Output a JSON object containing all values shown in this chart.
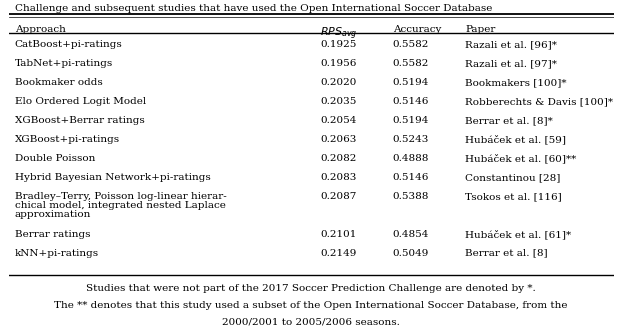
{
  "caption_top": "Challenge and subsequent studies that have used the Open International Soccer Database",
  "headers": [
    "Approach",
    "RPS_avg",
    "Accuracy",
    "Paper"
  ],
  "rows": [
    [
      "CatBoost+pi-ratings",
      "0.1925",
      "0.5582",
      "Razali et al. [96]*"
    ],
    [
      "TabNet+pi-ratings",
      "0.1956",
      "0.5582",
      "Razali et al. [97]*"
    ],
    [
      "Bookmaker odds",
      "0.2020",
      "0.5194",
      "Bookmakers [100]*"
    ],
    [
      "Elo Ordered Logit Model",
      "0.2035",
      "0.5146",
      "Robberechts & Davis [100]*"
    ],
    [
      "XGBoost+Berrar ratings",
      "0.2054",
      "0.5194",
      "Berrar et al. [8]*"
    ],
    [
      "XGBoost+pi-ratings",
      "0.2063",
      "0.5243",
      "Hubáček et al. [59]"
    ],
    [
      "Double Poisson",
      "0.2082",
      "0.4888",
      "Hubáček et al. [60]**"
    ],
    [
      "Hybrid Bayesian Network+pi-ratings",
      "0.2083",
      "0.5146",
      "Constantinou [28]"
    ],
    [
      "Bradley–Terry, Poisson log-linear hierar-\nchical model, integrated nested Laplace\napproximation",
      "0.2087",
      "0.5388",
      "Tsokos et al. [116]"
    ],
    [
      "Berrar ratings",
      "0.2101",
      "0.4854",
      "Hubáček et al. [61]*"
    ],
    [
      "kNN+pi-ratings",
      "0.2149",
      "0.5049",
      "Berrar et al. [8]"
    ]
  ],
  "footnote1": "Studies that were not part of the 2017 Soccer Prediction Challenge are denoted by *.",
  "footnote2": "The ** denotes that this study used a subset of the Open International Soccer Database, from the",
  "footnote3": "2000/2001 to 2005/2006 seasons.",
  "bg_color": "#ffffff",
  "text_color": "#000000",
  "fontsize": 7.5
}
